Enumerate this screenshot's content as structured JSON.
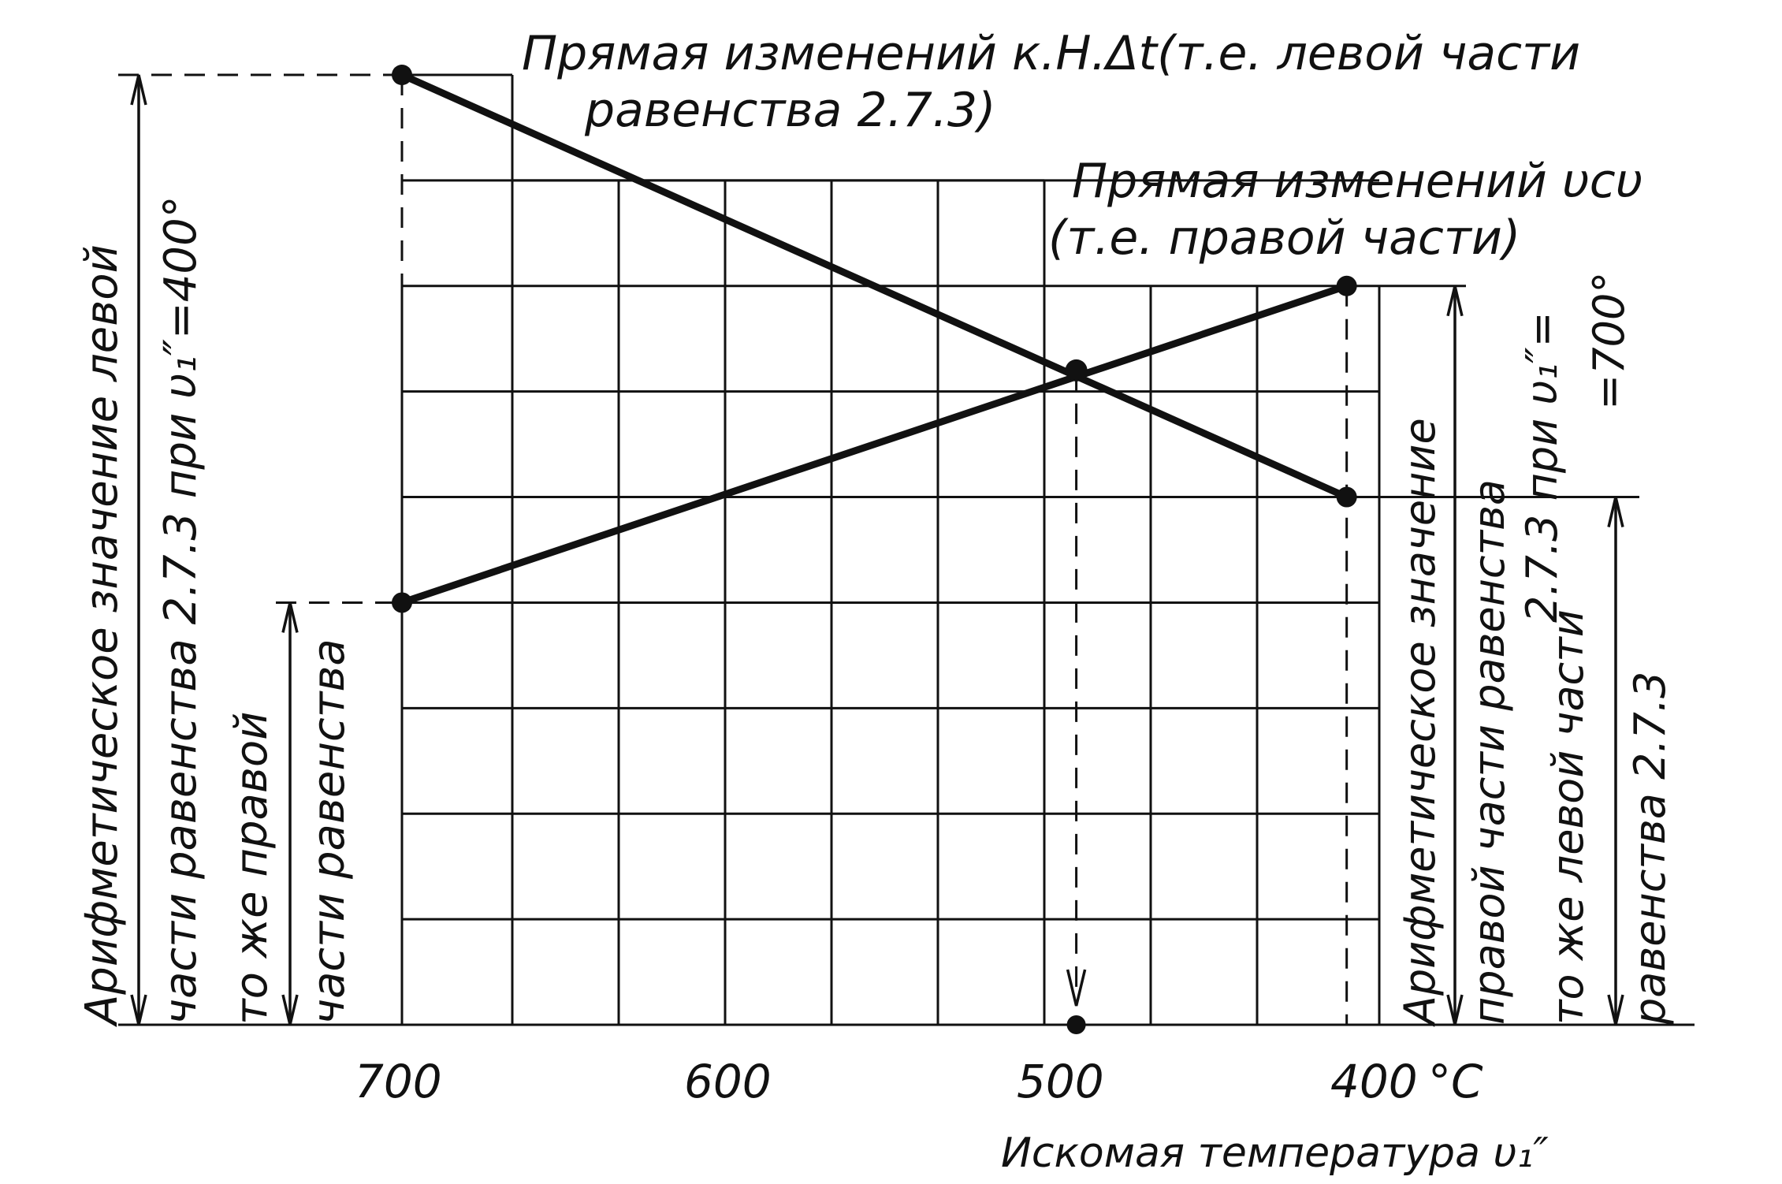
{
  "chart_data": {
    "type": "line",
    "x_axis": {
      "ticks": [
        "700",
        "600",
        "500",
        "400"
      ],
      "unit": "°C",
      "label": "Искомая температура υ₁″",
      "direction": "descending"
    },
    "series": [
      {
        "name": "Прямая изменений к.Н.Δt (т.е. левой части равенства 2.7.3)",
        "points": [
          {
            "x": 700,
            "y": 9
          },
          {
            "x": 410,
            "y": 5
          }
        ]
      },
      {
        "name": "Прямая изменений υсυ (т.е. правой части)",
        "points": [
          {
            "x": 700,
            "y": 4
          },
          {
            "x": 410,
            "y": 7
          }
        ]
      }
    ],
    "intersection": {
      "x": 493,
      "y": 6.2
    },
    "annotations": {
      "line1_a": "Прямая изменений к.Н.Δt(т.е. левой части",
      "line1_b": "равенства 2.7.3)",
      "line2_a": "Прямая изменений υсυ",
      "line2_b": "(т.е. правой части)",
      "left_outer_a": "Арифметическое значение левой",
      "left_outer_b": "части равенства 2.7.3 при υ₁″=400°",
      "left_inner_a": "то же правой",
      "left_inner_b": "части равенства",
      "right_a": "Арифметическое значение",
      "right_b": "правой части равенства",
      "right_c": "2.7.3 при υ₁″=",
      "right_d": "=700°",
      "right_inner_a": "то же левой части",
      "right_inner_b": "равенства 2.7.3"
    },
    "grid": true
  }
}
